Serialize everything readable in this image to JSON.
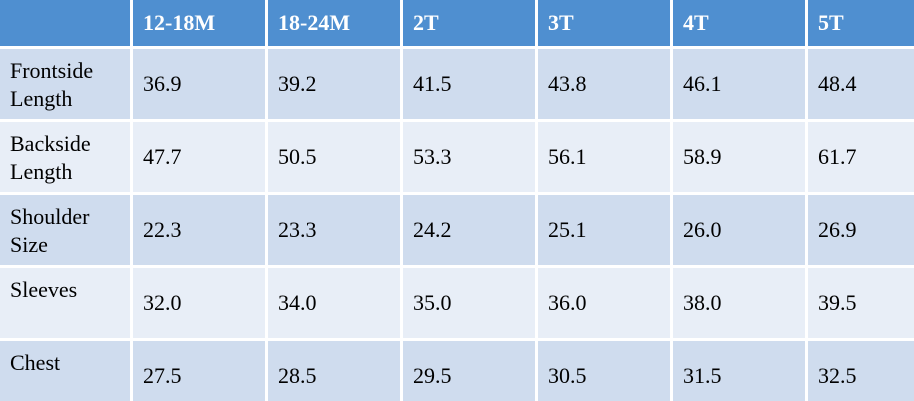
{
  "table": {
    "header": [
      "12-18M",
      "18-24M",
      "2T",
      "3T",
      "4T",
      "5T"
    ],
    "rows": [
      {
        "label": "Frontside Length",
        "cells": [
          "36.9",
          "39.2",
          "41.5",
          "43.8",
          "46.1",
          "48.4"
        ]
      },
      {
        "label": "Backside Length",
        "cells": [
          "47.7",
          "50.5",
          "53.3",
          "56.1",
          "58.9",
          "61.7"
        ]
      },
      {
        "label": "Shoulder Size",
        "cells": [
          "22.3",
          "23.3",
          "24.2",
          "25.1",
          "26.0",
          "26.9"
        ]
      },
      {
        "label": "Sleeves",
        "cells": [
          "32.0",
          "34.0",
          "35.0",
          "36.0",
          "38.0",
          "39.5"
        ]
      },
      {
        "label": "Chest",
        "cells": [
          "27.5",
          "28.5",
          "29.5",
          "30.5",
          "31.5",
          "32.5"
        ]
      }
    ]
  }
}
